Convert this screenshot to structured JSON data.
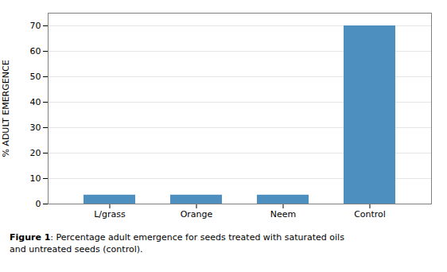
{
  "chart_data": {
    "type": "bar",
    "categories": [
      "L/grass",
      "Orange",
      "Neem",
      "Control"
    ],
    "values": [
      3.5,
      3.5,
      3.5,
      70
    ],
    "color": "#4d8fbe",
    "ylabel": "% ADULT EMERGENCE",
    "caption": "Figure 1: Percentage adult emergence for seeds treated with saturated oils\nand untreated seeds (control).",
    "ylim": [
      0,
      75
    ],
    "yticks": [
      0,
      10,
      20,
      30,
      40,
      50,
      60,
      70
    ],
    "grid": true
  }
}
